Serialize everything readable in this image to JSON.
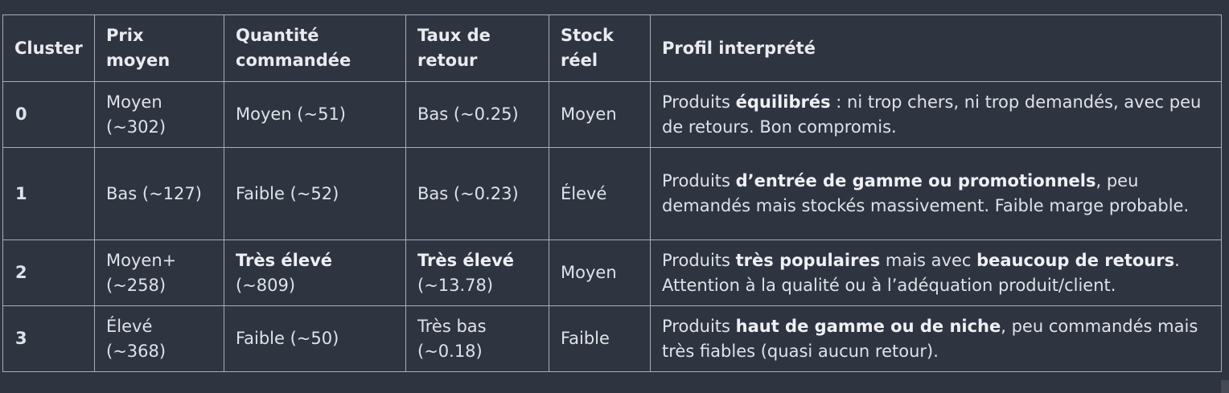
{
  "headers": {
    "cluster": "Cluster",
    "prix": "Prix moyen",
    "quantite": "Quantité commandée",
    "taux": "Taux de retour",
    "stock": "Stock réel",
    "profil": "Profil interprété"
  },
  "rows": [
    {
      "cluster": "0",
      "prix": "Moyen (~302)",
      "quantite": "Moyen (~51)",
      "taux": "Bas (~0.25)",
      "stock": "Moyen",
      "profil": [
        {
          "text": "Produits ",
          "bold": false
        },
        {
          "text": "équilibrés",
          "bold": true
        },
        {
          "text": " : ni trop chers, ni trop demandés, avec peu de retours. Bon compromis.",
          "bold": false
        }
      ]
    },
    {
      "cluster": "1",
      "prix": "Bas (~127)",
      "quantite": "Faible (~52)",
      "taux": "Bas (~0.23)",
      "stock": "Élevé",
      "profil": [
        {
          "text": "Produits ",
          "bold": false
        },
        {
          "text": "d’entrée de gamme ou promotionnels",
          "bold": true
        },
        {
          "text": ", peu demandés mais stockés massivement. Faible marge probable.",
          "bold": false
        }
      ]
    },
    {
      "cluster": "2",
      "prix": "Moyen+ (~258)",
      "quantite_bold": "Très élevé",
      "quantite_rest": "(~809)",
      "taux_bold": "Très élevé",
      "taux_rest": "(~13.78)",
      "stock": "Moyen",
      "profil": [
        {
          "text": "Produits ",
          "bold": false
        },
        {
          "text": "très populaires",
          "bold": true
        },
        {
          "text": " mais avec ",
          "bold": false
        },
        {
          "text": "beaucoup de retours",
          "bold": true
        },
        {
          "text": ". Attention à la qualité ou à l’adéquation produit/client.",
          "bold": false
        }
      ]
    },
    {
      "cluster": "3",
      "prix": "Élevé (~368)",
      "quantite": "Faible (~50)",
      "taux": "Très bas (~0.18)",
      "stock": "Faible",
      "profil": [
        {
          "text": "Produits ",
          "bold": false
        },
        {
          "text": "haut de gamme ou de niche",
          "bold": true
        },
        {
          "text": ", peu commandés mais très fiables (quasi aucun retour).",
          "bold": false
        }
      ]
    }
  ]
}
